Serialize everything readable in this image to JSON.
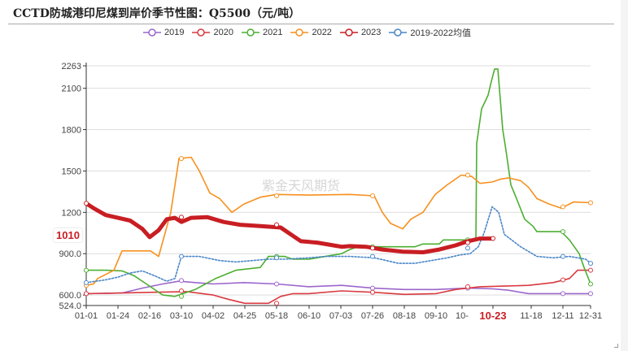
{
  "title": "CCTD防城港印尼煤到岸价季节性图：Q5500（元/吨）",
  "watermark": "紫金天风期货",
  "latest_value_badge": "1010",
  "highlight_x_label": "10-23",
  "colors": {
    "2019": "#9b66cc",
    "2020": "#d9393f",
    "2021": "#4caf30",
    "2022": "#f7901e",
    "2023": "#c81e23",
    "avg": "#4a86c8"
  },
  "legend": [
    {
      "key": "2019",
      "label": "2019"
    },
    {
      "key": "2020",
      "label": "2020"
    },
    {
      "key": "2021",
      "label": "2021"
    },
    {
      "key": "2022",
      "label": "2022"
    },
    {
      "key": "2023",
      "label": "2023"
    },
    {
      "key": "avg",
      "label": "2019-2022均值"
    }
  ],
  "y_ticks": [
    "2263",
    "2100",
    "1800",
    "1500",
    "1200",
    "900.0",
    "600.0",
    "524.0"
  ],
  "x_ticks": [
    "01-01",
    "01-24",
    "02-16",
    "03-10",
    "04-02",
    "04-25",
    "05-18",
    "06-10",
    "07-03",
    "07-26",
    "08-18",
    "09-10",
    "10-",
    "11-18",
    "12-11",
    "12-31"
  ],
  "chart_data": {
    "type": "line",
    "title": "CCTD防城港印尼煤到岸价季节性图：Q5500（元/吨）",
    "xlabel": "",
    "ylabel": "元/吨",
    "ylim": [
      524,
      2263
    ],
    "grid": true,
    "legend_position": "top",
    "x": [
      "01-01",
      "01-24",
      "02-16",
      "03-10",
      "04-02",
      "04-25",
      "05-18",
      "06-10",
      "07-03",
      "07-26",
      "08-18",
      "09-10",
      "10-02",
      "10-23",
      "11-18",
      "12-11",
      "12-31"
    ],
    "series": [
      {
        "name": "2019",
        "values": [
          610,
          615,
          670,
          705,
          680,
          690,
          680,
          660,
          670,
          650,
          640,
          640,
          650,
          645,
          610,
          610,
          610
        ]
      },
      {
        "name": "2020",
        "values": [
          610,
          612,
          620,
          630,
          590,
          545,
          540,
          600,
          630,
          620,
          610,
          605,
          660,
          665,
          670,
          710,
          780
        ]
      },
      {
        "name": "2021",
        "values": [
          780,
          780,
          660,
          590,
          700,
          790,
          880,
          875,
          900,
          950,
          950,
          960,
          1000,
          2240,
          1100,
          1060,
          680
        ]
      },
      {
        "name": "2022",
        "values": [
          670,
          800,
          920,
          1590,
          1330,
          1230,
          1320,
          1330,
          1330,
          1320,
          1080,
          1210,
          1470,
          1440,
          1300,
          1240,
          1270
        ]
      },
      {
        "name": "2023",
        "values": [
          1265,
          1150,
          1020,
          1165,
          1150,
          1100,
          1110,
          970,
          930,
          940,
          910,
          905,
          980,
          1010
        ]
      },
      {
        "name": "2019-2022均值",
        "values": [
          690,
          730,
          780,
          880,
          830,
          830,
          870,
          860,
          880,
          880,
          820,
          870,
          940,
          1240,
          880,
          880,
          830
        ]
      }
    ]
  }
}
